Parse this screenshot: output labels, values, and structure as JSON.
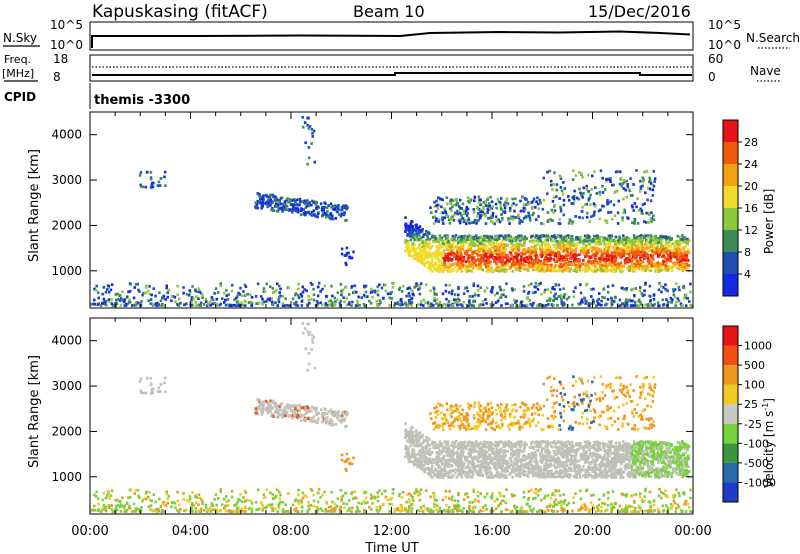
{
  "header": {
    "station": "Kapuskasing (fitACF)",
    "beam": "Beam 10",
    "date": "15/Dec/2016"
  },
  "nsky_panel": {
    "left_label": "N.Sky",
    "right_label": "N.Search",
    "left_ticks": [
      "10^5",
      "10^0"
    ],
    "right_ticks": [
      "10^5",
      "10^0"
    ]
  },
  "freq_panel": {
    "left_label_1": "Freq.",
    "left_label_2": "[MHz]",
    "right_label": "Nave",
    "left_ticks": [
      "18",
      "8"
    ],
    "right_ticks": [
      "60",
      "0"
    ]
  },
  "cpid_panel": {
    "left_label": "CPID",
    "program": "themis -3300"
  },
  "chart_data": [
    {
      "type": "heatmap",
      "name": "power",
      "ylabel": "Slant Range [km]",
      "xlabel": "Time UT",
      "ylim": [
        180,
        4500
      ],
      "xlim_hours": [
        0,
        24
      ],
      "y_ticks": [
        1000,
        2000,
        3000,
        4000
      ],
      "x_tick_labels": [
        "00:00",
        "04:00",
        "08:00",
        "12:00",
        "16:00",
        "20:00",
        "00:00"
      ],
      "colorbar_label": "Power [dB]",
      "colorbar_ticks": [
        "4",
        "8",
        "12",
        "16",
        "20",
        "24",
        "28"
      ],
      "colorbar_colors": [
        "#1428e6",
        "#1e50b4",
        "#3c8c5a",
        "#8cc83c",
        "#f0dc28",
        "#f5a014",
        "#f05a0a",
        "#e61414"
      ],
      "regions": [
        {
          "desc": "near-range scatter",
          "t": [
            0,
            24
          ],
          "r": [
            180,
            700
          ],
          "level": 0.35
        },
        {
          "desc": "patch 2-3h",
          "t": [
            1.8,
            3.0
          ],
          "r": [
            2800,
            3150
          ],
          "level": 0.15
        },
        {
          "desc": "echo band 6.5-10h",
          "t": [
            6.5,
            10.2
          ],
          "r": [
            2150,
            2700
          ],
          "level": 0.15
        },
        {
          "desc": "isolated 8-9h",
          "t": [
            8.3,
            9.0
          ],
          "r": [
            3300,
            4400
          ],
          "level": 0.2
        },
        {
          "desc": "isolated 10-10.5h",
          "t": [
            9.9,
            10.6
          ],
          "r": [
            1100,
            1500
          ],
          "level": 0.1
        },
        {
          "desc": "main band 12.5-23.8h",
          "t": [
            12.5,
            23.8
          ],
          "r": [
            900,
            2000
          ],
          "level": 0.8
        },
        {
          "desc": "upper band 13.5-22.5h",
          "t": [
            13.5,
            22.5
          ],
          "r": [
            2000,
            3200
          ],
          "level": 0.4
        }
      ]
    },
    {
      "type": "heatmap",
      "name": "velocity",
      "ylabel": "Slant Range [km]",
      "xlabel": "Time UT",
      "ylim": [
        180,
        4500
      ],
      "xlim_hours": [
        0,
        24
      ],
      "y_ticks": [
        1000,
        2000,
        3000,
        4000
      ],
      "x_tick_labels": [
        "00:00",
        "04:00",
        "08:00",
        "12:00",
        "16:00",
        "20:00",
        "00:00"
      ],
      "colorbar_label": "Velocity [m s",
      "colorbar_label_sup": "-1",
      "colorbar_label_end": "]",
      "colorbar_ticks": [
        "1000",
        "500",
        "100",
        "25",
        "-25",
        "-100",
        "-500",
        "-1000"
      ],
      "colorbar_colors": [
        "#1e3cc8",
        "#2a6aaa",
        "#3c963c",
        "#78d23c",
        "#c8c8c0",
        "#f0c828",
        "#f0961e",
        "#f05014",
        "#e61414"
      ]
    }
  ],
  "colors": {
    "ground_scatter": "#c0c0b8",
    "axis": "#000000"
  }
}
